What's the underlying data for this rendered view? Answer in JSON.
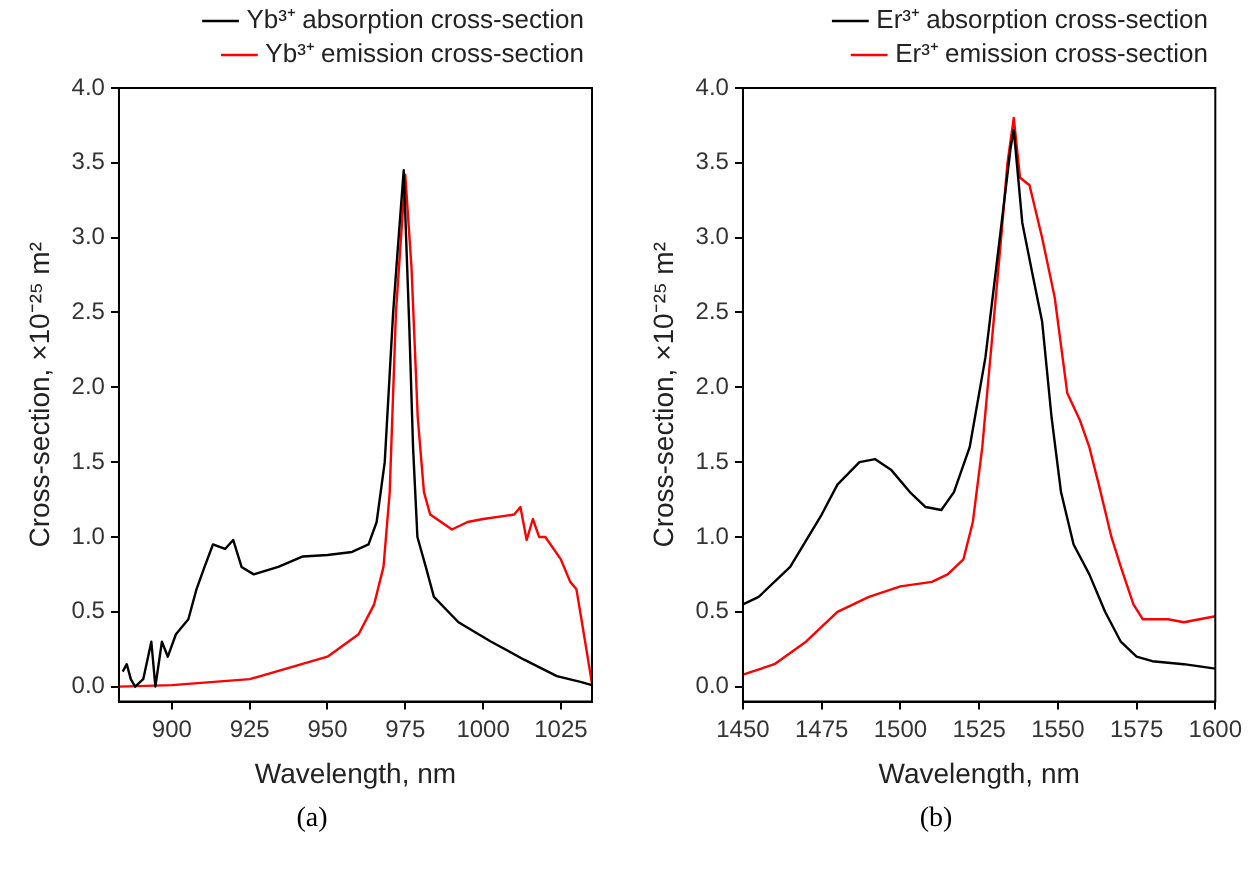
{
  "chart_data": [
    {
      "type": "line",
      "xlabel": "Wavelength, nm",
      "ylabel": "Cross-section, ×10⁻²⁵ m²",
      "legend": "top",
      "grid": false,
      "marker": "none",
      "line_style": "solid",
      "xlim": [
        883,
        1035
      ],
      "xticks": [
        900,
        925,
        950,
        975,
        1000,
        1025
      ],
      "ylim": [
        -0.1,
        4.0
      ],
      "yticks": [
        {
          "value": 0,
          "label": "0.0"
        },
        0.5,
        {
          "value": 1,
          "label": "1.0"
        },
        1.5,
        {
          "value": 2,
          "label": "2.0"
        },
        2.5,
        {
          "value": 3,
          "label": "3.0"
        },
        3.5,
        {
          "value": 4,
          "label": "4.0"
        }
      ],
      "annotations": [
        "(a)"
      ],
      "series": [
        {
          "name": "Yb³⁺ absorption cross-section",
          "color": "#000000",
          "x": [
            884.2,
            885.5,
            886.8,
            888.2,
            890.8,
            893.4,
            894.7,
            896.8,
            898.7,
            901.3,
            905.3,
            907.9,
            910.5,
            913.2,
            917.1,
            919.7,
            922.4,
            926.3,
            934.2,
            942.1,
            950,
            957.9,
            963.2,
            965.8,
            968.4,
            971.1,
            972.5,
            974.5,
            976.3,
            977.5,
            978.9,
            981.6,
            984.2,
            992.1,
            1002.6,
            1013.2,
            1023.7,
            1031.6,
            1035
          ],
          "values": [
            0.1,
            0.15,
            0.05,
            0.0,
            0.05,
            0.3,
            0.0,
            0.3,
            0.2,
            0.35,
            0.45,
            0.65,
            0.8,
            0.95,
            0.92,
            0.98,
            0.8,
            0.75,
            0.8,
            0.87,
            0.88,
            0.9,
            0.95,
            1.1,
            1.5,
            2.5,
            2.9,
            3.45,
            2.4,
            1.6,
            1.0,
            0.8,
            0.6,
            0.43,
            0.3,
            0.18,
            0.07,
            0.03,
            0.01
          ]
        },
        {
          "name": "Yb³⁺ emission cross-section",
          "color": "#ff0000",
          "x": [
            883,
            900,
            925,
            950,
            960,
            965,
            968,
            970,
            972,
            975,
            977,
            979,
            981,
            983,
            990,
            995,
            1000,
            1010,
            1012,
            1014,
            1016,
            1018,
            1020,
            1025,
            1028,
            1030,
            1032,
            1035
          ],
          "values": [
            0.0,
            0.01,
            0.05,
            0.2,
            0.35,
            0.55,
            0.8,
            1.3,
            2.5,
            3.42,
            2.8,
            1.8,
            1.3,
            1.15,
            1.05,
            1.1,
            1.12,
            1.15,
            1.2,
            0.98,
            1.12,
            1.0,
            1.0,
            0.85,
            0.7,
            0.65,
            0.4,
            0.02
          ]
        }
      ]
    },
    {
      "type": "line",
      "xlabel": "Wavelength, nm",
      "ylabel": "Cross-section, ×10⁻²⁵ m²",
      "legend": "top",
      "grid": false,
      "marker": "none",
      "line_style": "solid",
      "xlim": [
        1450,
        1600
      ],
      "xticks": [
        1450,
        1475,
        1500,
        1525,
        1550,
        1575,
        1600
      ],
      "ylim": [
        -0.1,
        4.0
      ],
      "yticks": [
        {
          "value": 0,
          "label": "0.0"
        },
        0.5,
        {
          "value": 1,
          "label": "1.0"
        },
        1.5,
        {
          "value": 2,
          "label": "2.0"
        },
        2.5,
        {
          "value": 3,
          "label": "3.0"
        },
        3.5,
        {
          "value": 4,
          "label": "4.0"
        }
      ],
      "annotations": [
        "(b)"
      ],
      "series": [
        {
          "name": "Er³⁺ absorption cross-section",
          "color": "#000000",
          "x": [
            1450,
            1455,
            1465,
            1475,
            1480,
            1487,
            1492,
            1497,
            1503,
            1508,
            1513,
            1517,
            1522,
            1527,
            1531,
            1535,
            1536,
            1538.7,
            1542,
            1545,
            1548,
            1551,
            1555,
            1560,
            1565,
            1570,
            1575,
            1580,
            1590,
            1600
          ],
          "values": [
            0.55,
            0.6,
            0.8,
            1.15,
            1.35,
            1.5,
            1.52,
            1.45,
            1.3,
            1.2,
            1.18,
            1.3,
            1.6,
            2.2,
            2.9,
            3.6,
            3.72,
            3.1,
            2.75,
            2.44,
            1.8,
            1.3,
            0.95,
            0.75,
            0.5,
            0.3,
            0.2,
            0.17,
            0.15,
            0.12
          ]
        },
        {
          "name": "Er³⁺ emission cross-section",
          "color": "#ff0000",
          "x": [
            1450,
            1460,
            1470,
            1480,
            1490,
            1500,
            1510,
            1515,
            1520,
            1523,
            1526,
            1529,
            1532,
            1534,
            1536,
            1538,
            1541,
            1545,
            1549,
            1553,
            1557,
            1560,
            1563,
            1567,
            1570,
            1574,
            1577,
            1585,
            1590,
            1595,
            1600
          ],
          "values": [
            0.08,
            0.15,
            0.3,
            0.5,
            0.6,
            0.67,
            0.7,
            0.75,
            0.85,
            1.1,
            1.6,
            2.3,
            3.0,
            3.5,
            3.8,
            3.4,
            3.35,
            3.0,
            2.6,
            1.96,
            1.78,
            1.6,
            1.35,
            1.0,
            0.8,
            0.55,
            0.45,
            0.45,
            0.43,
            0.45,
            0.47
          ]
        }
      ]
    }
  ]
}
